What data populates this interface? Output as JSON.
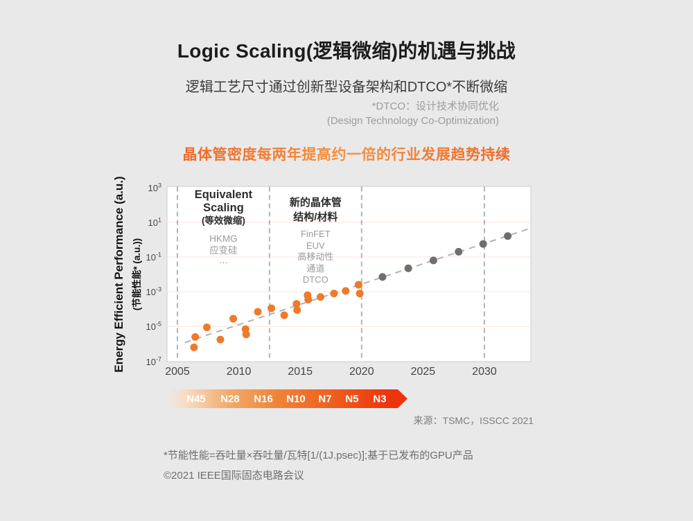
{
  "header": {
    "title": "Logic Scaling(逻辑微缩)的机遇与挑战",
    "subtitle": "逻辑工艺尺寸通过创新型设备架构和DTCO*不断微缩",
    "note_line1": "*DTCO：设计技术协同优化",
    "note_line2": "(Design Technology Co-Optimization)",
    "highlight": "晶体管密度每两年提高约一倍的行业发展趋势持续",
    "highlight_color_red": "#e7380c",
    "highlight_color_orange": "#f5923e"
  },
  "chart_data": {
    "type": "scatter",
    "ylabel_en": "Energy Efficient Performance (a.u.)",
    "ylabel_zh": "(节能性能* (a.u.))",
    "x_ticks": [
      2005,
      2010,
      2015,
      2020,
      2025,
      2030
    ],
    "y_ticks_exponents": [
      3,
      1,
      -1,
      -3,
      -5,
      -7
    ],
    "xlim": [
      2004.2,
      2033.8
    ],
    "ylim_log10": [
      -7,
      3
    ],
    "grid": "horizontal, at labeled decades",
    "gridline_exponents": [
      1,
      -1,
      -3,
      -5
    ],
    "divider_years": [
      2005,
      2012.5,
      2020,
      2030
    ],
    "trend": {
      "start": [
        2005.6,
        -5.92
      ],
      "end": [
        2033.75,
        0.65
      ]
    },
    "series": [
      {
        "id": "observed-orange",
        "color": "#ee7a2b",
        "points_year_log10": [
          [
            2006.35,
            -6.2
          ],
          [
            2006.45,
            -5.6
          ],
          [
            2007.4,
            -5.05
          ],
          [
            2008.5,
            -5.75
          ],
          [
            2009.55,
            -4.55
          ],
          [
            2010.55,
            -5.15
          ],
          [
            2010.6,
            -5.45
          ],
          [
            2011.55,
            -4.15
          ],
          [
            2012.65,
            -3.95
          ],
          [
            2013.7,
            -4.35
          ],
          [
            2014.7,
            -3.7
          ],
          [
            2014.75,
            -4.05
          ],
          [
            2015.6,
            -3.2
          ],
          [
            2015.65,
            -3.45
          ],
          [
            2016.65,
            -3.3
          ],
          [
            2017.75,
            -3.1
          ],
          [
            2018.7,
            -2.95
          ],
          [
            2019.75,
            -2.6
          ],
          [
            2019.85,
            -3.1
          ]
        ]
      },
      {
        "id": "projected-gray",
        "color": "#6e6e6e",
        "points_year_log10": [
          [
            2021.7,
            -2.15
          ],
          [
            2023.8,
            -1.65
          ],
          [
            2025.85,
            -1.2
          ],
          [
            2027.9,
            -0.7
          ],
          [
            2029.9,
            -0.25
          ],
          [
            2031.9,
            0.2
          ]
        ]
      }
    ],
    "zones": [
      {
        "title_lines": [
          "Equivalent",
          "Scaling"
        ],
        "subtitle": "(等效微缩)",
        "items": [
          "HKMG",
          "应变硅",
          "···"
        ],
        "x_start": 2005,
        "x_end": 2012.5
      },
      {
        "title_lines": [
          "新的晶体管",
          "结构/材料"
        ],
        "subtitle": "",
        "items": [
          "FinFET",
          "EUV",
          "高移动性",
          "通道",
          "DTCO"
        ],
        "x_start": 2012.5,
        "x_end": 2020
      }
    ],
    "colors": {
      "gridline": "#fbe5da",
      "divider": "#b4b4b4",
      "trend": "#b3b3b3",
      "plot_border": "#cccccc",
      "plot_bg": "#ffffff"
    }
  },
  "node_bar": {
    "labels": [
      "N45",
      "N28",
      "N16",
      "N10",
      "N7",
      "N5",
      "N3"
    ],
    "gradient_start": "#f8dcc4",
    "gradient_mid": "#ef8336",
    "gradient_end": "#ee340d"
  },
  "source": {
    "label": "来源：TSMC，ISSCC 2021"
  },
  "footnotes": [
    "*节能性能=吞吐量×吞吐量/瓦特[1/(1J.psec)];基于已发布的GPU产品",
    "©2021 IEEE国际固态电路会议"
  ]
}
